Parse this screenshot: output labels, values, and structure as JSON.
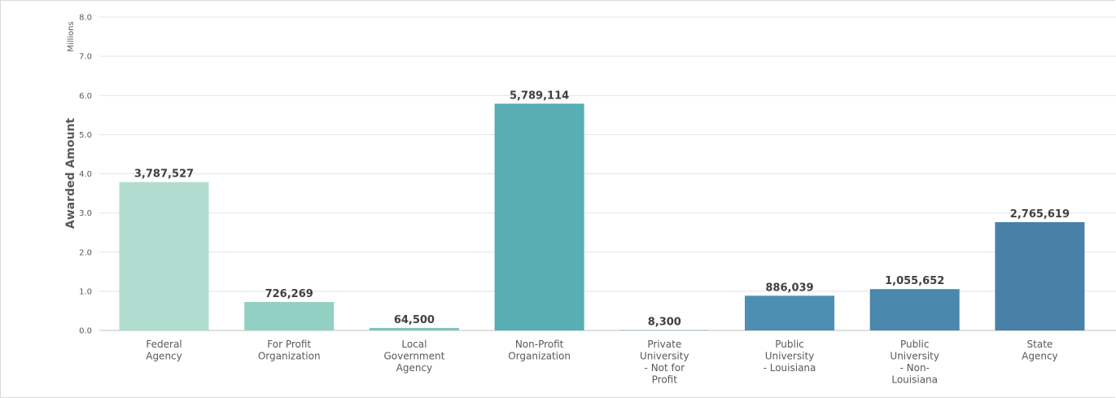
{
  "chart_data": {
    "type": "bar",
    "title": "",
    "xlabel": "",
    "ylabel": "Awarded Amount",
    "y_unit_label": "Millions",
    "ylim": [
      0,
      8.0
    ],
    "y_ticks": [
      "0.0",
      "1.0",
      "2.0",
      "3.0",
      "4.0",
      "5.0",
      "6.0",
      "7.0",
      "8.0"
    ],
    "grid": true,
    "categories": [
      [
        "Federal",
        "Agency"
      ],
      [
        "For Profit",
        "Organization"
      ],
      [
        "Local",
        "Government",
        "Agency"
      ],
      [
        "Non-Profit",
        "Organization"
      ],
      [
        "Private",
        "University",
        "- Not for",
        "Profit"
      ],
      [
        "Public",
        "University",
        "- Louisiana"
      ],
      [
        "Public",
        "University",
        "- Non-",
        "Louisiana"
      ],
      [
        "State",
        "Agency"
      ]
    ],
    "values": [
      3787527,
      726269,
      64500,
      5789114,
      8300,
      886039,
      1055652,
      2765619
    ],
    "data_labels": [
      "3,787,527",
      "726,269",
      "64,500",
      "5,789,114",
      "8,300",
      "886,039",
      "1,055,652",
      "2,765,619"
    ],
    "colors": [
      "#b0ddd0",
      "#92d0c4",
      "#7fc5bd",
      "#57aeb3",
      "#5aa9b6",
      "#4c8fb2",
      "#4a88ad",
      "#4880a8"
    ]
  }
}
